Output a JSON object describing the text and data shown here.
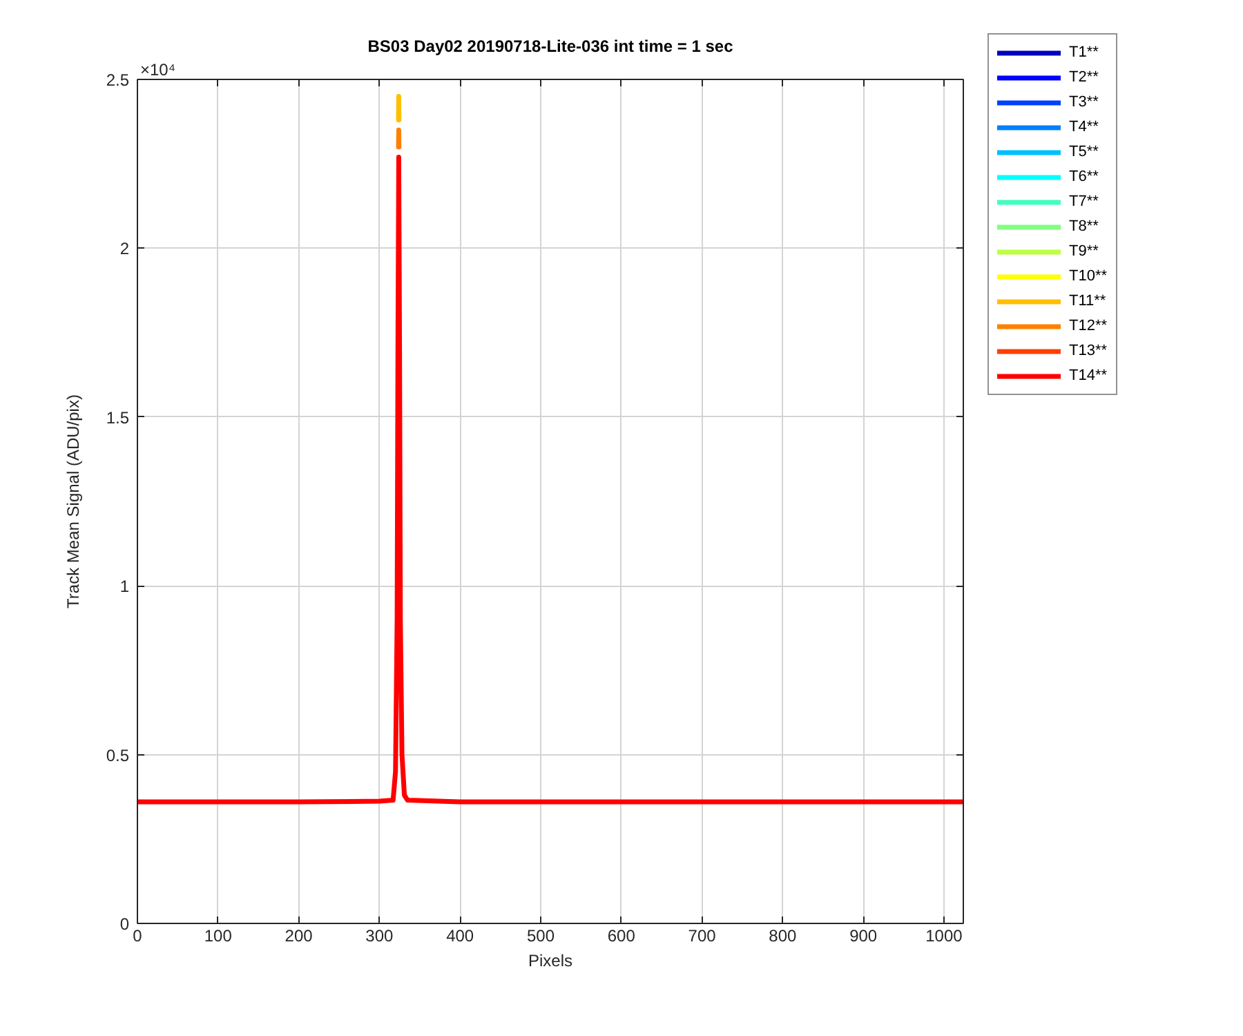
{
  "chart_data": {
    "type": "line",
    "title": "BS03 Day02 20190718-Lite-036 int time = 1 sec",
    "xlabel": "Pixels",
    "ylabel": "Track Mean Signal (ADU/pix)",
    "annotations": [
      "×10⁴"
    ],
    "x": [
      0,
      100,
      200,
      300,
      317,
      320,
      322,
      323,
      324,
      325,
      326,
      328,
      331,
      335,
      400,
      500,
      600,
      700,
      800,
      900,
      1000,
      1024
    ],
    "xlim": [
      0,
      1024
    ],
    "xticks": [
      0,
      100,
      200,
      300,
      400,
      500,
      600,
      700,
      800,
      900,
      1000
    ],
    "ylim": [
      0,
      2.5
    ],
    "yticks": [
      0,
      0.5,
      1,
      1.5,
      2,
      2.5
    ],
    "grid": true,
    "legend": "top right",
    "line_style": "solid",
    "series": [
      {
        "name": "T1**",
        "color": "#0000bf",
        "values": [
          null,
          null,
          null,
          null,
          null,
          null,
          null,
          null,
          null,
          null,
          null,
          null,
          null,
          null,
          null,
          null,
          null,
          null,
          null,
          null,
          null,
          null
        ]
      },
      {
        "name": "T2**",
        "color": "#0000ff",
        "values": [
          null,
          null,
          null,
          null,
          null,
          null,
          null,
          null,
          null,
          null,
          null,
          null,
          null,
          null,
          null,
          null,
          null,
          null,
          null,
          null,
          null,
          null
        ]
      },
      {
        "name": "T3**",
        "color": "#0040ff",
        "values": [
          null,
          null,
          null,
          null,
          null,
          null,
          null,
          null,
          null,
          null,
          null,
          null,
          null,
          null,
          null,
          null,
          null,
          null,
          null,
          null,
          null,
          null
        ]
      },
      {
        "name": "T4**",
        "color": "#0080ff",
        "values": [
          null,
          null,
          null,
          null,
          null,
          null,
          null,
          null,
          null,
          null,
          null,
          null,
          null,
          null,
          null,
          null,
          null,
          null,
          null,
          null,
          null,
          null
        ]
      },
      {
        "name": "T5**",
        "color": "#00bfff",
        "values": [
          null,
          null,
          null,
          null,
          null,
          null,
          null,
          null,
          null,
          null,
          null,
          null,
          null,
          null,
          null,
          null,
          null,
          null,
          null,
          null,
          null,
          null
        ]
      },
      {
        "name": "T6**",
        "color": "#00ffff",
        "values": [
          null,
          null,
          null,
          null,
          null,
          null,
          null,
          null,
          null,
          null,
          null,
          null,
          null,
          null,
          null,
          null,
          null,
          null,
          null,
          null,
          null,
          null
        ]
      },
      {
        "name": "T7**",
        "color": "#40ffbf",
        "values": [
          null,
          null,
          null,
          null,
          null,
          null,
          null,
          null,
          null,
          null,
          null,
          null,
          null,
          null,
          null,
          null,
          null,
          null,
          null,
          null,
          null,
          null
        ]
      },
      {
        "name": "T8**",
        "color": "#80ff80",
        "values": [
          null,
          null,
          null,
          null,
          null,
          null,
          null,
          null,
          null,
          null,
          null,
          null,
          null,
          null,
          null,
          null,
          null,
          null,
          null,
          null,
          null,
          null
        ]
      },
      {
        "name": "T9**",
        "color": "#bfff40",
        "values": [
          null,
          null,
          null,
          null,
          null,
          null,
          null,
          null,
          null,
          null,
          null,
          null,
          null,
          null,
          null,
          null,
          null,
          null,
          null,
          null,
          null,
          null
        ]
      },
      {
        "name": "T10**",
        "color": "#ffff00",
        "values": [
          null,
          null,
          null,
          null,
          null,
          null,
          null,
          null,
          null,
          null,
          null,
          null,
          null,
          null,
          null,
          null,
          null,
          null,
          null,
          null,
          null,
          null
        ]
      },
      {
        "name": "T11**",
        "color": "#ffbf00",
        "x": [
          323.7,
          324,
          324.3
        ],
        "values": [
          2.38,
          2.45,
          2.38
        ]
      },
      {
        "name": "T12**",
        "color": "#ff8000",
        "x": [
          323.7,
          324,
          324.3
        ],
        "values": [
          2.3,
          2.35,
          2.3
        ]
      },
      {
        "name": "T13**",
        "color": "#ff4000",
        "values": [
          null,
          null,
          null,
          null,
          null,
          null,
          null,
          null,
          null,
          null,
          null,
          null,
          null,
          null,
          null,
          null,
          null,
          null,
          null,
          null,
          null,
          null
        ]
      },
      {
        "name": "T14**",
        "color": "#ff0000",
        "values": [
          0.36,
          0.36,
          0.36,
          0.362,
          0.365,
          0.45,
          0.9,
          1.7,
          2.27,
          1.7,
          0.9,
          0.5,
          0.38,
          0.365,
          0.36,
          0.36,
          0.36,
          0.36,
          0.36,
          0.36,
          0.36,
          0.36
        ]
      }
    ]
  }
}
